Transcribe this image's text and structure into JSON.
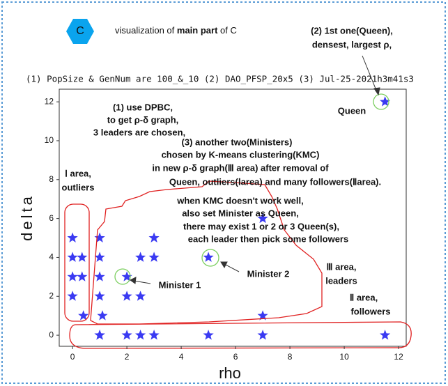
{
  "hexagon_label": "C",
  "title_parts": [
    "visualization of ",
    "main part",
    " of C"
  ],
  "chart_data": {
    "type": "scatter",
    "subtitle": "(1) PopSize & GenNum are 100_&_10 (2) DAO_PFSP_20x5 (3) Jul-25-2021h3m41s3",
    "x_label": "rho",
    "y_label": "delta",
    "color": "#3a3af2",
    "x": [
      0,
      0,
      0,
      0,
      0.35,
      0.35,
      0.4,
      1,
      1,
      1,
      1,
      1.1,
      1,
      2,
      2,
      2.5,
      2.5,
      3,
      3,
      5,
      7,
      7,
      11.5,
      1,
      2,
      2.5,
      3,
      5,
      7,
      11.5
    ],
    "values": [
      5,
      4,
      3,
      2,
      4,
      3,
      1,
      5,
      4,
      3,
      2,
      1,
      0,
      3,
      2,
      4,
      2,
      5,
      4,
      4,
      6,
      1,
      12,
      0,
      0,
      0,
      0,
      0,
      0,
      0
    ],
    "xlim": [
      -0.49,
      12.28
    ],
    "ylim": [
      -0.57,
      12.65
    ],
    "xticks": [
      0,
      2,
      4,
      6,
      8,
      10,
      12
    ],
    "yticks": [
      0,
      2,
      4,
      6,
      8,
      10,
      12
    ],
    "annotations": [
      "(2) 1st one(Queen),",
      "densest, largest ρ,",
      "(1) use DPBC,",
      "to get  ρ-δ  graph,",
      "3 leaders are chosen,",
      "Queen",
      "(3) another two(Ministers)",
      "chosen by K-means clustering(KMC)",
      "in  new ρ-δ graph(Ⅲ area) after removal of",
      "Queen, outliers(Ⅰarea) and many followers(Ⅱarea).",
      "when KMC doesn't work well,",
      "also set Minister as Queen,",
      "there may exist  1 or 2 or 3 Queen(s),",
      "each leader then pick some followers",
      "Ⅰ area,",
      "outliers",
      "Minister 1",
      "Minister 2",
      "Ⅲ area,",
      "leaders",
      "Ⅱ area,",
      "followers"
    ]
  }
}
